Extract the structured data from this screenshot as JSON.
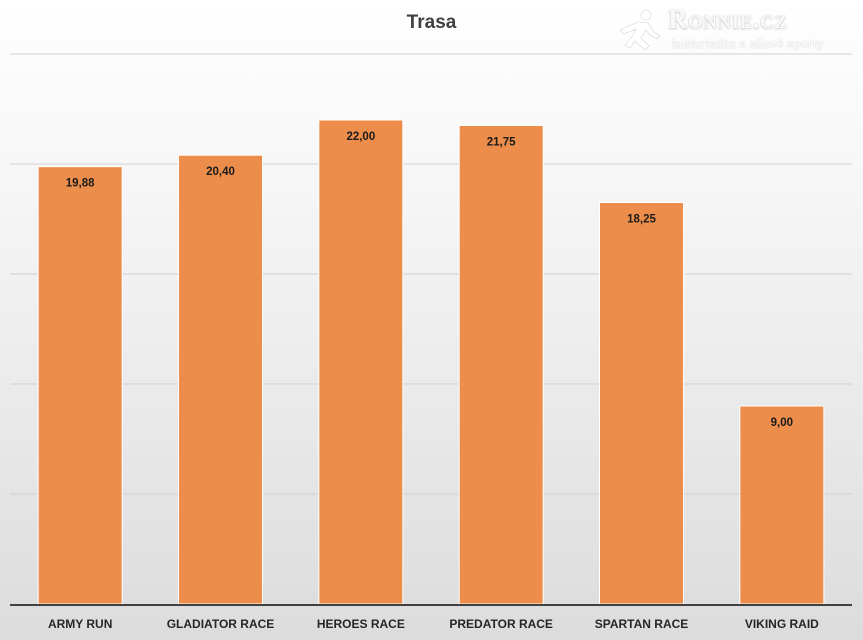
{
  "chart_data": {
    "type": "bar",
    "title": "Trasa",
    "categories": [
      "ARMY RUN",
      "GLADIATOR RACE",
      "HEROES RACE",
      "PREDATOR RACE",
      "SPARTAN RACE",
      "VIKING RAID"
    ],
    "values": [
      19.88,
      20.4,
      22.0,
      21.75,
      18.25,
      9.0
    ],
    "value_labels": [
      "19,88",
      "20,40",
      "22,00",
      "21,75",
      "18,25",
      "9,00"
    ],
    "ylim": [
      0,
      25
    ],
    "y_gridline_step": 5,
    "grid": true,
    "legend": "none",
    "bar_color": "#ED8D4B",
    "gridline_color": "#d0d0d0",
    "axis_color": "#404040"
  },
  "watermark": {
    "brand": "Ronnie.cz",
    "tagline": "kulturistika a silové sporty",
    "text_color": "#ffffff"
  }
}
